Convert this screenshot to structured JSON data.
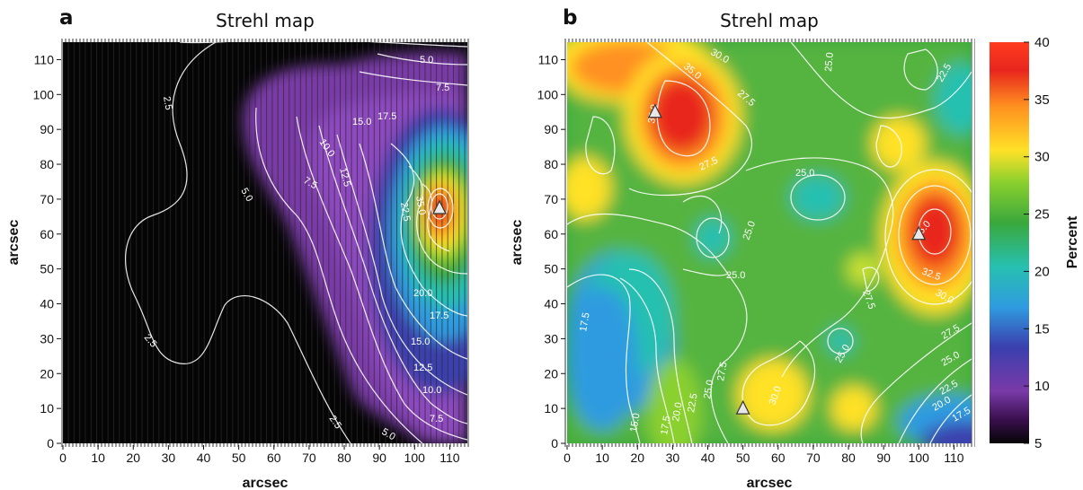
{
  "chart_data": [
    {
      "type": "heatmap",
      "panel": "a",
      "title": "Strehl map",
      "xlabel": "arcsec",
      "ylabel": "arcsec",
      "xlim": [
        0,
        115
      ],
      "ylim": [
        0,
        115
      ],
      "xticks": [
        0,
        10,
        20,
        30,
        40,
        50,
        60,
        70,
        80,
        90,
        100,
        110
      ],
      "yticks": [
        0,
        10,
        20,
        30,
        40,
        50,
        60,
        70,
        80,
        90,
        100,
        110
      ],
      "contour_levels": [
        "2.5",
        "5.0",
        "7.5",
        "10.0",
        "12.5",
        "15.0",
        "17.5",
        "20.0",
        "22.5",
        "25.0",
        "27.5",
        "30.0",
        "32.5",
        "35.0"
      ],
      "peak_marker": {
        "x": 104,
        "y": 67,
        "value": 38
      },
      "grid": true
    },
    {
      "type": "heatmap",
      "panel": "b",
      "title": "Strehl map",
      "xlabel": "arcsec",
      "ylabel": "arcsec",
      "xlim": [
        0,
        115
      ],
      "ylim": [
        0,
        115
      ],
      "xticks": [
        0,
        10,
        20,
        30,
        40,
        50,
        60,
        70,
        80,
        90,
        100,
        110
      ],
      "yticks": [
        0,
        10,
        20,
        30,
        40,
        50,
        60,
        70,
        80,
        90,
        100,
        110
      ],
      "contour_levels": [
        "15.0",
        "17.5",
        "20.0",
        "22.5",
        "25.0",
        "27.5",
        "30.0",
        "32.5",
        "35.0"
      ],
      "markers": [
        {
          "x": 25,
          "y": 95
        },
        {
          "x": 100,
          "y": 60
        },
        {
          "x": 50,
          "y": 10
        }
      ],
      "grid": false
    }
  ],
  "colorbar": {
    "label": "Percent",
    "min": 5,
    "max": 40,
    "ticks": [
      "5",
      "10",
      "15",
      "20",
      "25",
      "30",
      "35",
      "40"
    ]
  },
  "panels": {
    "a": {
      "letter": "a",
      "title": "Strehl map",
      "xlabel": "arcsec",
      "ylabel": "arcsec"
    },
    "b": {
      "letter": "b",
      "title": "Strehl map",
      "xlabel": "arcsec",
      "ylabel": "arcsec"
    }
  }
}
